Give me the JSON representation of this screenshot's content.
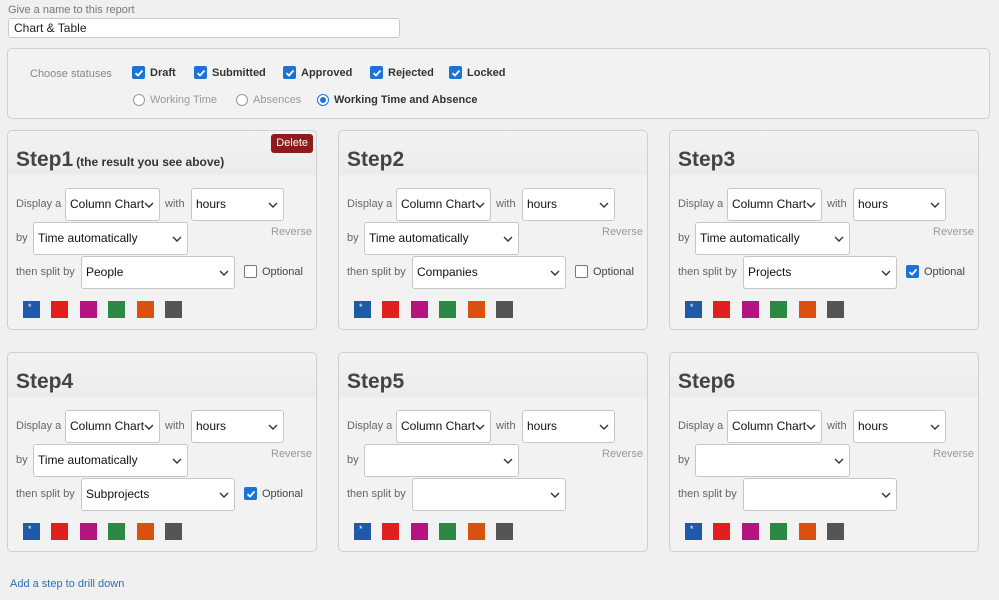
{
  "report_name": {
    "label": "Give a name to this report",
    "value": "Chart & Table"
  },
  "statuses": {
    "label": "Choose statuses",
    "items": [
      {
        "label": "Draft",
        "checked": true
      },
      {
        "label": "Submitted",
        "checked": true
      },
      {
        "label": "Approved",
        "checked": true
      },
      {
        "label": "Rejected",
        "checked": true
      },
      {
        "label": "Locked",
        "checked": true
      }
    ],
    "radios": [
      {
        "label": "Working Time",
        "selected": false
      },
      {
        "label": "Absences",
        "selected": false
      },
      {
        "label": "Working Time and Absence",
        "selected": true
      }
    ]
  },
  "labels": {
    "display_a": "Display a",
    "with": "with",
    "by": "by",
    "then_split_by": "then split by",
    "reverse": "Reverse",
    "optional": "Optional",
    "delete": "Delete",
    "add_step": "Add a step to drill down"
  },
  "colors": [
    "#1e5aa8",
    "#e21f1f",
    "#b5137e",
    "#2a8a45",
    "#d9500f",
    "#555555"
  ],
  "steps": [
    {
      "title": "Step1",
      "subtitle": "(the result you see above)",
      "chart": "Column Chart",
      "metric": "hours",
      "by": "Time automatically",
      "split": "People",
      "optional": false,
      "delete": true
    },
    {
      "title": "Step2",
      "subtitle": "",
      "chart": "Column Chart",
      "metric": "hours",
      "by": "Time automatically",
      "split": "Companies",
      "optional": false,
      "delete": false
    },
    {
      "title": "Step3",
      "subtitle": "",
      "chart": "Column Chart",
      "metric": "hours",
      "by": "Time automatically",
      "split": "Projects",
      "optional": true,
      "delete": false
    },
    {
      "title": "Step4",
      "subtitle": "",
      "chart": "Column Chart",
      "metric": "hours",
      "by": "Time automatically",
      "split": "Subprojects",
      "optional": true,
      "delete": false
    },
    {
      "title": "Step5",
      "subtitle": "",
      "chart": "Column Chart",
      "metric": "hours",
      "by": "",
      "split": "",
      "optional": null,
      "delete": false
    },
    {
      "title": "Step6",
      "subtitle": "",
      "chart": "Column Chart",
      "metric": "hours",
      "by": "",
      "split": "",
      "optional": null,
      "delete": false
    }
  ]
}
